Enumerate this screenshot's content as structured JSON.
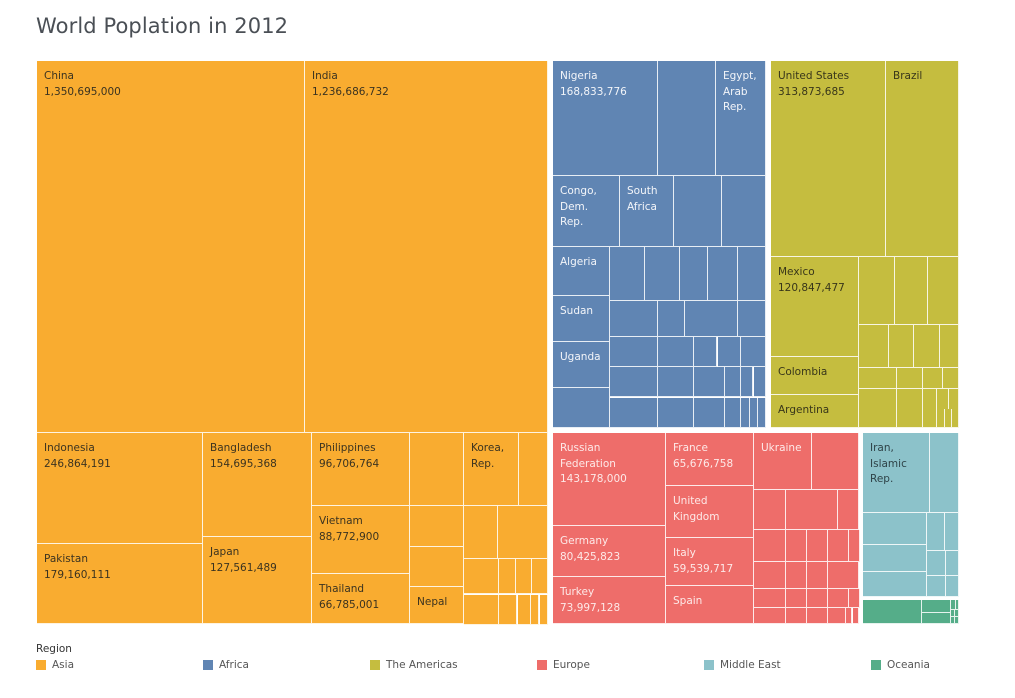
{
  "title": "World Poplation in 2012",
  "legend": {
    "title": "Region",
    "items": [
      {
        "label": "Asia",
        "color": "#F9AC30"
      },
      {
        "label": "Africa",
        "color": "#6085B3"
      },
      {
        "label": "The Americas",
        "color": "#C5BD3F"
      },
      {
        "label": "Europe",
        "color": "#EE6D6A"
      },
      {
        "label": "Middle East",
        "color": "#8CC2CA"
      },
      {
        "label": "Oceania",
        "color": "#55AD89"
      }
    ]
  },
  "chart_data": {
    "type": "treemap",
    "title": "World Poplation in 2012",
    "size_measure": "Population",
    "color_dimension": "Region",
    "regions": [
      {
        "name": "Asia",
        "color": "#F9AC30",
        "labeled_items": [
          {
            "country": "China",
            "population": 1350695000,
            "label": "China\n1,350,695,000"
          },
          {
            "country": "India",
            "population": 1236686732,
            "label": "India\n1,236,686,732"
          },
          {
            "country": "Indonesia",
            "population": 246864191,
            "label": "Indonesia\n246,864,191"
          },
          {
            "country": "Pakistan",
            "population": 179160111,
            "label": "Pakistan\n179,160,111"
          },
          {
            "country": "Bangladesh",
            "population": 154695368,
            "label": "Bangladesh\n154,695,368"
          },
          {
            "country": "Japan",
            "population": 127561489,
            "label": "Japan\n127,561,489"
          },
          {
            "country": "Philippines",
            "population": 96706764,
            "label": "Philippines\n96,706,764"
          },
          {
            "country": "Vietnam",
            "population": 88772900,
            "label": "Vietnam\n88,772,900"
          },
          {
            "country": "Thailand",
            "population": 66785001,
            "label": "Thailand\n66,785,001"
          },
          {
            "country": "Korea, Rep.",
            "population": null,
            "label": "Korea,\nRep."
          },
          {
            "country": "Nepal",
            "population": null,
            "label": "Nepal"
          }
        ]
      },
      {
        "name": "Africa",
        "color": "#6085B3",
        "labeled_items": [
          {
            "country": "Nigeria",
            "population": 168833776,
            "label": "Nigeria\n168,833,776"
          },
          {
            "country": "Egypt, Arab Rep.",
            "population": null,
            "label": "Egypt,\nArab\nRep."
          },
          {
            "country": "Congo, Dem. Rep.",
            "population": null,
            "label": "Congo,\nDem.\nRep."
          },
          {
            "country": "South Africa",
            "population": null,
            "label": "South\nAfrica"
          },
          {
            "country": "Algeria",
            "population": null,
            "label": "Algeria"
          },
          {
            "country": "Sudan",
            "population": null,
            "label": "Sudan"
          },
          {
            "country": "Uganda",
            "population": null,
            "label": "Uganda"
          }
        ]
      },
      {
        "name": "The Americas",
        "color": "#C5BD3F",
        "labeled_items": [
          {
            "country": "United States",
            "population": 313873685,
            "label": "United States\n313,873,685"
          },
          {
            "country": "Brazil",
            "population": null,
            "label": "Brazil"
          },
          {
            "country": "Mexico",
            "population": 120847477,
            "label": "Mexico\n120,847,477"
          },
          {
            "country": "Colombia",
            "population": null,
            "label": "Colombia"
          },
          {
            "country": "Argentina",
            "population": null,
            "label": "Argentina"
          }
        ]
      },
      {
        "name": "Europe",
        "color": "#EE6D6A",
        "labeled_items": [
          {
            "country": "Russian Federation",
            "population": 143178000,
            "label": "Russian\nFederation\n143,178,000"
          },
          {
            "country": "Germany",
            "population": 80425823,
            "label": "Germany\n80,425,823"
          },
          {
            "country": "Turkey",
            "population": 73997128,
            "label": "Turkey\n73,997,128"
          },
          {
            "country": "France",
            "population": 65676758,
            "label": "France\n65,676,758"
          },
          {
            "country": "United Kingdom",
            "population": null,
            "label": "United\nKingdom"
          },
          {
            "country": "Italy",
            "population": 59539717,
            "label": "Italy\n59,539,717"
          },
          {
            "country": "Spain",
            "population": null,
            "label": "Spain"
          },
          {
            "country": "Ukraine",
            "population": null,
            "label": "Ukraine"
          }
        ]
      },
      {
        "name": "Middle East",
        "color": "#8CC2CA",
        "labeled_items": [
          {
            "country": "Iran, Islamic Rep.",
            "population": null,
            "label": "Iran,\nIslamic\nRep."
          }
        ]
      },
      {
        "name": "Oceania",
        "color": "#55AD89",
        "labeled_items": []
      }
    ]
  }
}
